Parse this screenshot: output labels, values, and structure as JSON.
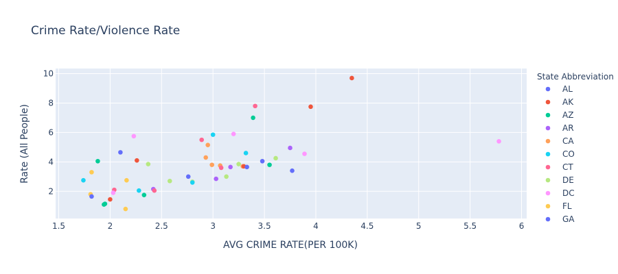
{
  "chart_data": {
    "type": "scatter",
    "title": "Crime Rate/Violence Rate",
    "xlabel": "AVG CRIME RATE(PER 100K)",
    "ylabel": "Rate (All People)",
    "xlim": [
      1.47,
      6.05
    ],
    "ylim": [
      0.15,
      10.35
    ],
    "xticks": [
      1.5,
      2,
      2.5,
      3,
      3.5,
      4,
      4.5,
      5,
      5.5,
      6
    ],
    "xtick_labels": [
      "1.5",
      "2",
      "2.5",
      "3",
      "3.5",
      "4",
      "4.5",
      "5",
      "5.5",
      "6"
    ],
    "yticks": [
      2,
      4,
      6,
      8,
      10
    ],
    "ytick_labels": [
      "2",
      "4",
      "6",
      "8",
      "10"
    ],
    "grid": true,
    "plot_background": "#e5ecf6",
    "legend": {
      "title": "State Abbreviation",
      "placement": "right",
      "entries": [
        {
          "name": "AL",
          "color": "#636efa"
        },
        {
          "name": "AK",
          "color": "#ef553b"
        },
        {
          "name": "AZ",
          "color": "#00cc96"
        },
        {
          "name": "AR",
          "color": "#ab63fa"
        },
        {
          "name": "CA",
          "color": "#ffa15a"
        },
        {
          "name": "CO",
          "color": "#19d3f3"
        },
        {
          "name": "CT",
          "color": "#ff6692"
        },
        {
          "name": "DE",
          "color": "#b6e880"
        },
        {
          "name": "DC",
          "color": "#ff97ff"
        },
        {
          "name": "FL",
          "color": "#fecb52"
        },
        {
          "name": "GA",
          "color": "#636efa"
        }
      ]
    },
    "points": [
      {
        "x": 4.35,
        "y": 9.7,
        "color": "#ef553b"
      },
      {
        "x": 3.95,
        "y": 7.75,
        "color": "#ef553b"
      },
      {
        "x": 3.41,
        "y": 7.8,
        "color": "#ff6692"
      },
      {
        "x": 3.39,
        "y": 7.0,
        "color": "#00cc96"
      },
      {
        "x": 5.78,
        "y": 5.4,
        "color": "#ff97ff"
      },
      {
        "x": 3.2,
        "y": 5.9,
        "color": "#ff97ff"
      },
      {
        "x": 3.0,
        "y": 5.85,
        "color": "#19d3f3"
      },
      {
        "x": 2.23,
        "y": 5.75,
        "color": "#ff97ff"
      },
      {
        "x": 2.89,
        "y": 5.5,
        "color": "#ff6692"
      },
      {
        "x": 2.95,
        "y": 5.15,
        "color": "#ffa15a"
      },
      {
        "x": 3.75,
        "y": 4.95,
        "color": "#ab63fa"
      },
      {
        "x": 2.1,
        "y": 4.65,
        "color": "#636efa"
      },
      {
        "x": 3.32,
        "y": 4.6,
        "color": "#19d3f3"
      },
      {
        "x": 3.89,
        "y": 4.55,
        "color": "#ff97ff"
      },
      {
        "x": 3.61,
        "y": 4.25,
        "color": "#b6e880"
      },
      {
        "x": 2.93,
        "y": 4.3,
        "color": "#ffa15a"
      },
      {
        "x": 2.26,
        "y": 4.1,
        "color": "#ef553b"
      },
      {
        "x": 1.88,
        "y": 4.05,
        "color": "#00cc96"
      },
      {
        "x": 3.48,
        "y": 4.05,
        "color": "#636efa"
      },
      {
        "x": 2.37,
        "y": 3.85,
        "color": "#b6e880"
      },
      {
        "x": 3.25,
        "y": 3.85,
        "color": "#b6e880"
      },
      {
        "x": 3.55,
        "y": 3.8,
        "color": "#00cc96"
      },
      {
        "x": 2.99,
        "y": 3.8,
        "color": "#ffa15a"
      },
      {
        "x": 3.07,
        "y": 3.75,
        "color": "#ffa15a"
      },
      {
        "x": 3.29,
        "y": 3.7,
        "color": "#ffa15a"
      },
      {
        "x": 3.3,
        "y": 3.7,
        "color": "#ef553b"
      },
      {
        "x": 3.33,
        "y": 3.65,
        "color": "#636efa"
      },
      {
        "x": 3.17,
        "y": 3.65,
        "color": "#ab63fa"
      },
      {
        "x": 3.08,
        "y": 3.6,
        "color": "#ff6692"
      },
      {
        "x": 3.77,
        "y": 3.4,
        "color": "#636efa"
      },
      {
        "x": 1.82,
        "y": 3.3,
        "color": "#fecb52"
      },
      {
        "x": 3.13,
        "y": 3.0,
        "color": "#b6e880"
      },
      {
        "x": 2.76,
        "y": 3.0,
        "color": "#636efa"
      },
      {
        "x": 3.03,
        "y": 2.85,
        "color": "#ab63fa"
      },
      {
        "x": 1.74,
        "y": 2.75,
        "color": "#19d3f3"
      },
      {
        "x": 2.16,
        "y": 2.75,
        "color": "#fecb52"
      },
      {
        "x": 2.58,
        "y": 2.7,
        "color": "#b6e880"
      },
      {
        "x": 2.8,
        "y": 2.65,
        "color": "#b6e880"
      },
      {
        "x": 2.8,
        "y": 2.6,
        "color": "#19d3f3"
      },
      {
        "x": 2.42,
        "y": 2.15,
        "color": "#ab63fa"
      },
      {
        "x": 2.43,
        "y": 2.05,
        "color": "#ff6692"
      },
      {
        "x": 2.04,
        "y": 2.1,
        "color": "#ff6692"
      },
      {
        "x": 2.28,
        "y": 2.05,
        "color": "#19d3f3"
      },
      {
        "x": 2.03,
        "y": 1.9,
        "color": "#ff97ff"
      },
      {
        "x": 1.81,
        "y": 1.8,
        "color": "#fecb52"
      },
      {
        "x": 2.33,
        "y": 1.75,
        "color": "#00cc96"
      },
      {
        "x": 1.82,
        "y": 1.65,
        "color": "#636efa"
      },
      {
        "x": 2.0,
        "y": 1.45,
        "color": "#ef553b"
      },
      {
        "x": 1.95,
        "y": 1.15,
        "color": "#00cc96"
      },
      {
        "x": 1.94,
        "y": 1.1,
        "color": "#00cc96"
      },
      {
        "x": 2.15,
        "y": 0.8,
        "color": "#fecb52"
      }
    ]
  }
}
